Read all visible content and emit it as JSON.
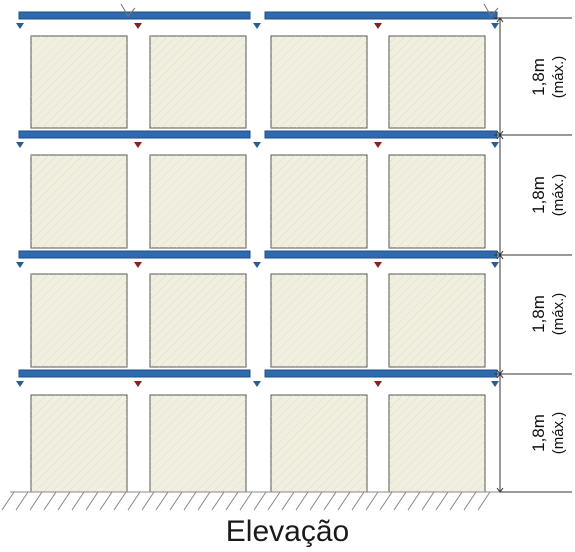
{
  "caption": "Elevação",
  "levels": [
    {
      "height_label": "1,8m",
      "note": "(máx.)"
    },
    {
      "height_label": "1,8m",
      "note": "(máx.)"
    },
    {
      "height_label": "1,8m",
      "note": "(máx.)"
    },
    {
      "height_label": "1,8m",
      "note": "(máx.)"
    }
  ],
  "colors": {
    "beam": "#2e6aad",
    "beam_edge": "#1d4f86",
    "pallet_fill": "#f1efdf",
    "pallet_stroke": "#555555",
    "marker_blue": "#2a5c96",
    "marker_red": "#8c2020",
    "ground": "#888888"
  }
}
